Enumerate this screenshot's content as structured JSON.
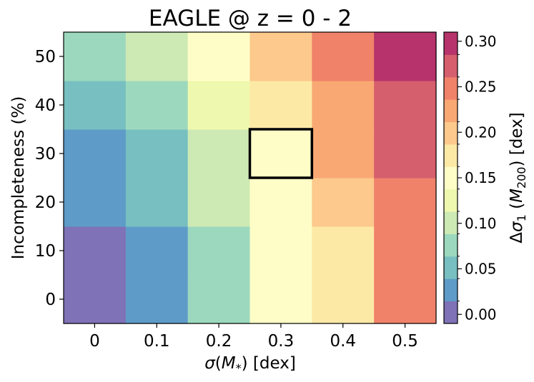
{
  "chart_data": {
    "type": "heatmap",
    "title": "EAGLE @ z = 0 - 2",
    "xlabel_var": "σ",
    "xlabel_arg": "M",
    "xlabel_sub": "*",
    "xlabel_unit": "[dex]",
    "ylabel": "Incompleteness (%)",
    "colorbar_label_prefix": "Δ",
    "colorbar_label_var": "σ",
    "colorbar_label_var_sub": "1",
    "colorbar_label_arg": "M",
    "colorbar_label_arg_sub": "200",
    "colorbar_label_unit": "[dex]",
    "x_categories": [
      "0",
      "0.1",
      "0.2",
      "0.3",
      "0.4",
      "0.5"
    ],
    "y_categories": [
      "0",
      "10",
      "20",
      "30",
      "40",
      "50"
    ],
    "values": [
      [
        -0.01,
        0.02,
        0.085,
        0.14,
        0.18,
        0.255
      ],
      [
        -0.01,
        0.02,
        0.085,
        0.14,
        0.18,
        0.255
      ],
      [
        0.03,
        0.06,
        0.11,
        0.155,
        0.21,
        0.255
      ],
      [
        0.03,
        0.06,
        0.11,
        0.16,
        0.23,
        0.275
      ],
      [
        0.06,
        0.085,
        0.125,
        0.17,
        0.23,
        0.275
      ],
      [
        0.085,
        0.11,
        0.15,
        0.21,
        0.25,
        0.295
      ]
    ],
    "highlight_cell": {
      "x": "0.3",
      "y": "30"
    },
    "colorbar": {
      "vmin": -0.01,
      "vmax": 0.31,
      "ticks": [
        "0.00",
        "0.05",
        "0.10",
        "0.15",
        "0.20",
        "0.25",
        "0.30"
      ],
      "colors": [
        "#7f72b6",
        "#5e9bc8",
        "#77bfc0",
        "#9cd8be",
        "#cde9b4",
        "#eef8ae",
        "#fefdc7",
        "#fde9a6",
        "#fdc98c",
        "#f9a874",
        "#f0826a",
        "#d65f6e",
        "#b6346b"
      ]
    }
  }
}
